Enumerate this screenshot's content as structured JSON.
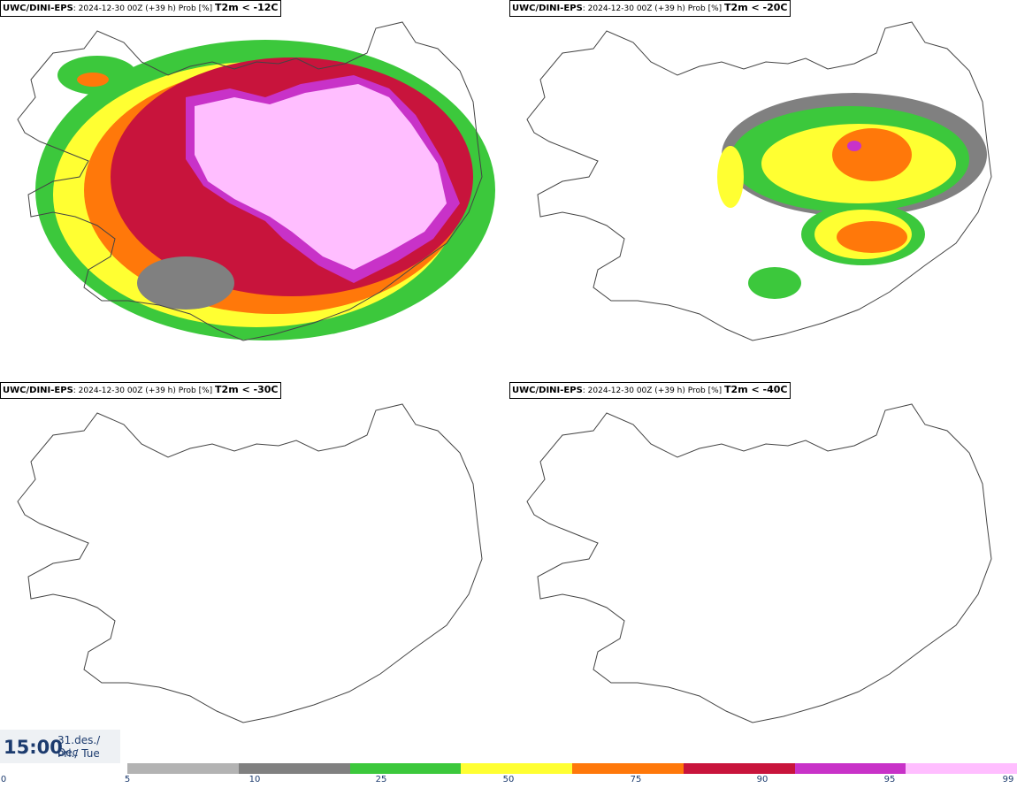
{
  "panels": [
    {
      "model": "UWC/DINI-EPS",
      "run": ": 2024-12-30 00Z (+39 h) Prob [%] ",
      "variable": "T2m < -12C"
    },
    {
      "model": "UWC/DINI-EPS",
      "run": ": 2024-12-30 00Z (+39 h) Prob [%] ",
      "variable": "T2m < -20C"
    },
    {
      "model": "UWC/DINI-EPS",
      "run": ": 2024-12-30 00Z (+39 h) Prob [%] ",
      "variable": "T2m < -30C"
    },
    {
      "model": "UWC/DINI-EPS",
      "run": ": 2024-12-30 00Z (+39 h) Prob [%] ",
      "variable": "T2m < -40C"
    }
  ],
  "time": {
    "hour": "15:00",
    "date": "31.des./ Dec",
    "weekday": "Þri./ Tue"
  },
  "legend": {
    "ticks": [
      "0",
      "5",
      "10",
      "25",
      "50",
      "75",
      "90",
      "95",
      "99"
    ],
    "colors": [
      "#b3b3b3",
      "#808080",
      "#3cc83c",
      "#ffff32",
      "#ff780a",
      "#c8143c",
      "#c832c8",
      "#ffbeff"
    ]
  }
}
